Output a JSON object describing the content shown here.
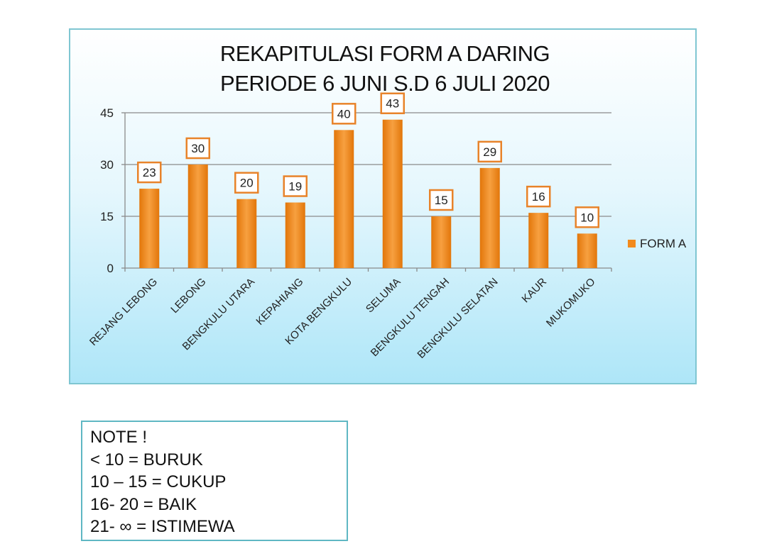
{
  "chart_data": {
    "type": "bar",
    "title": [
      "REKAPITULASI FORM A DARING",
      "PERIODE 6 JUNI S.D 6 JULI 2020"
    ],
    "categories": [
      "REJANG LEBONG",
      "LEBONG",
      "BENGKULU UTARA",
      "KEPAHIANG",
      "KOTA BENGKULU",
      "SELUMA",
      "BENGKULU TENGAH",
      "BENGKULU SELATAN",
      "KAUR",
      "MUKOMUKO"
    ],
    "series": [
      {
        "name": "FORM A",
        "values": [
          23,
          30,
          20,
          19,
          40,
          43,
          15,
          29,
          16,
          10
        ]
      }
    ],
    "yticks": [
      "0",
      "15",
      "30",
      "45"
    ],
    "ylim": [
      0,
      45
    ],
    "grid": true,
    "legend": "right",
    "colors": {
      "bar": "#f28a1c",
      "bar_dark": "#e2760a",
      "label_border": "#e8832a",
      "grid": "#8a8a8a"
    }
  },
  "note": {
    "lines": [
      "NOTE !",
      "< 10 = BURUK",
      "10 – 15 = CUKUP",
      "16- 20 = BAIK",
      "21- ∞ = ISTIMEWA"
    ]
  }
}
